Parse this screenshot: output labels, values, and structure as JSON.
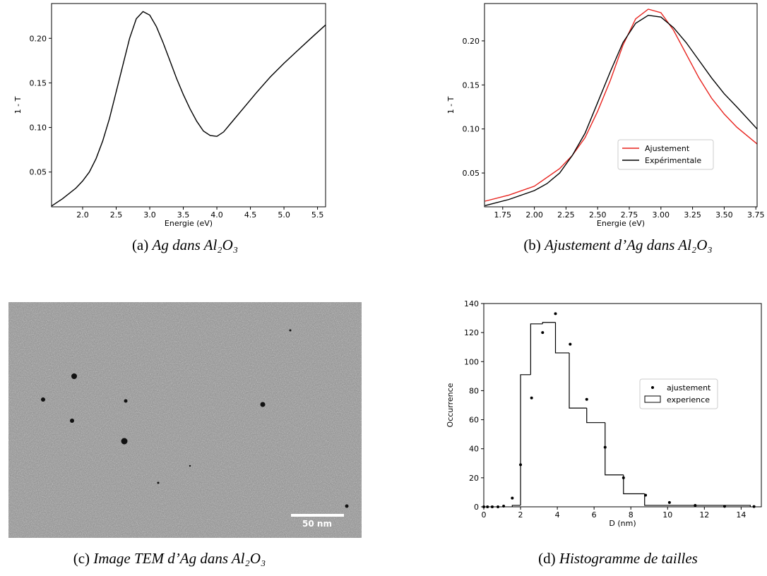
{
  "chart_data": [
    {
      "type": "line",
      "xlabel": "Energie (eV)",
      "ylabel": "1 - T",
      "xlim": [
        1.537,
        5.62
      ],
      "ylim": [
        0.011,
        0.239
      ],
      "xticks": [
        {
          "value": 2,
          "label": "2.0"
        },
        2.5,
        {
          "value": 3,
          "label": "3.0"
        },
        3.5,
        {
          "value": 4,
          "label": "4.0"
        },
        4.5,
        {
          "value": 5,
          "label": "5.0"
        },
        5.5
      ],
      "yticks": [
        0.05,
        {
          "value": 0.1,
          "label": "0.10"
        },
        0.15,
        {
          "value": 0.2,
          "label": "0.20"
        }
      ],
      "series": [
        {
          "color": "#000000",
          "x": [
            1.54,
            1.7,
            1.9,
            2.0,
            2.1,
            2.2,
            2.3,
            2.4,
            2.5,
            2.6,
            2.7,
            2.8,
            2.9,
            3.0,
            3.1,
            3.2,
            3.3,
            3.4,
            3.5,
            3.6,
            3.7,
            3.8,
            3.9,
            4.0,
            4.1,
            4.2,
            4.4,
            4.6,
            4.8,
            5.0,
            5.2,
            5.4,
            5.62
          ],
          "values": [
            0.012,
            0.02,
            0.032,
            0.04,
            0.05,
            0.065,
            0.085,
            0.11,
            0.14,
            0.17,
            0.2,
            0.222,
            0.23,
            0.226,
            0.213,
            0.195,
            0.175,
            0.155,
            0.137,
            0.121,
            0.107,
            0.096,
            0.091,
            0.09,
            0.095,
            0.104,
            0.122,
            0.14,
            0.157,
            0.172,
            0.186,
            0.2,
            0.215
          ]
        }
      ]
    },
    {
      "type": "line",
      "xlabel": "Energie (eV)",
      "ylabel": "1 - T",
      "legend": "center right",
      "xlim": [
        1.606,
        3.76
      ],
      "ylim": [
        0.0116,
        0.2424
      ],
      "xticks": [
        1.75,
        {
          "value": 2,
          "label": "2.00"
        },
        2.25,
        {
          "value": 2.5,
          "label": "2.50"
        },
        2.75,
        {
          "value": 3,
          "label": "3.00"
        },
        3.25,
        {
          "value": 3.5,
          "label": "3.50"
        },
        3.75
      ],
      "yticks": [
        0.05,
        {
          "value": 0.1,
          "label": "0.10"
        },
        0.15,
        {
          "value": 0.2,
          "label": "0.20"
        }
      ],
      "series": [
        {
          "name": "Ajustement",
          "color": "#e8231e",
          "x": [
            1.61,
            1.8,
            2.0,
            2.2,
            2.3,
            2.4,
            2.5,
            2.6,
            2.7,
            2.8,
            2.9,
            3.0,
            3.1,
            3.2,
            3.3,
            3.4,
            3.5,
            3.6,
            3.76
          ],
          "values": [
            0.018,
            0.025,
            0.035,
            0.055,
            0.07,
            0.09,
            0.12,
            0.155,
            0.195,
            0.225,
            0.236,
            0.232,
            0.212,
            0.185,
            0.158,
            0.135,
            0.117,
            0.102,
            0.083
          ]
        },
        {
          "name": "Expérimentale",
          "color": "#000000",
          "x": [
            1.61,
            1.8,
            2.0,
            2.1,
            2.2,
            2.3,
            2.4,
            2.5,
            2.6,
            2.7,
            2.8,
            2.9,
            3.0,
            3.1,
            3.2,
            3.3,
            3.4,
            3.5,
            3.6,
            3.76
          ],
          "values": [
            0.013,
            0.02,
            0.03,
            0.038,
            0.05,
            0.07,
            0.095,
            0.13,
            0.165,
            0.198,
            0.22,
            0.229,
            0.227,
            0.215,
            0.198,
            0.178,
            0.158,
            0.14,
            0.125,
            0.1
          ]
        }
      ]
    },
    {
      "type": "histogram",
      "xlabel": "D (nm)",
      "ylabel": "Occurrence",
      "legend": "center right",
      "xlim": [
        0,
        15.1
      ],
      "ylim": [
        0,
        140
      ],
      "xticks": [
        0,
        2,
        4,
        6,
        8,
        10,
        12,
        14
      ],
      "yticks": [
        0,
        20,
        40,
        60,
        80,
        100,
        120,
        140
      ],
      "series": [
        {
          "name": "ajustement",
          "type": "scatter",
          "color": "#000000",
          "x": [
            0,
            0.2,
            0.46,
            0.77,
            1.08,
            1.55,
            2.0,
            2.6,
            3.2,
            3.9,
            4.7,
            5.6,
            6.6,
            7.6,
            8.8,
            10.1,
            11.5,
            13.1,
            14.7
          ],
          "values": [
            0,
            0,
            0,
            0,
            0.5,
            6,
            29,
            75,
            120,
            133,
            112,
            74,
            41,
            20,
            8,
            3,
            1,
            0.3,
            0.2
          ]
        },
        {
          "name": "experience",
          "type": "histogram",
          "color": "#000000",
          "bins": [
            1.55,
            2.0,
            2.55,
            3.2,
            3.9,
            4.65,
            5.6,
            6.6,
            7.6,
            8.75,
            14.5
          ],
          "values": [
            1,
            91,
            126,
            127,
            106,
            68,
            58,
            22,
            9,
            1
          ]
        }
      ]
    }
  ],
  "tem_image": {
    "scale_bar": "50 nm"
  },
  "captions": [
    {
      "label": "(a)",
      "text": "Ag dans Al₂O₃"
    },
    {
      "label": "(b)",
      "text": "Ajustement d’Ag dans Al₂O₃"
    },
    {
      "label": "(c)",
      "text": "Image TEM d’Ag dans Al₂O₃"
    },
    {
      "label": "(d)",
      "text": "Histogramme de tailles"
    }
  ]
}
